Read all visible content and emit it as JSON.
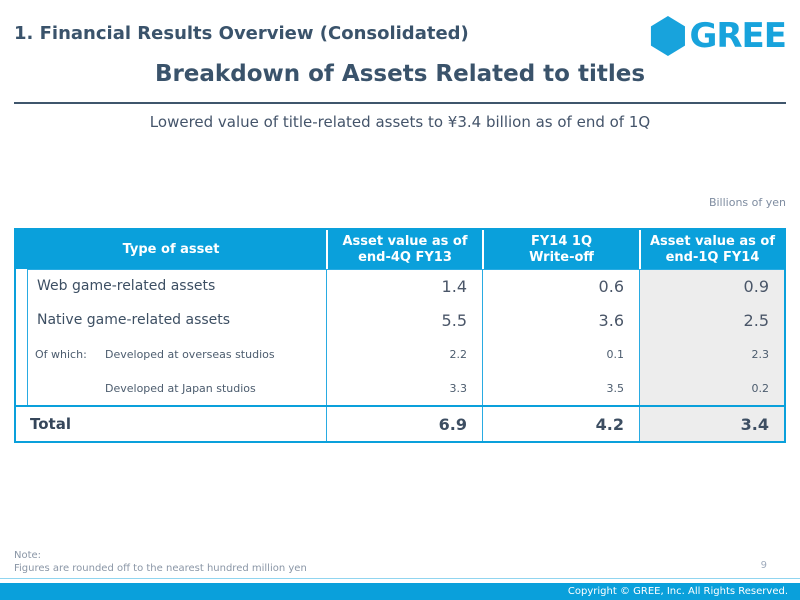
{
  "slide": {
    "section_title": "1. Financial Results Overview (Consolidated)",
    "title": "Breakdown of Assets Related to titles",
    "subtitle": "Lowered value of title-related assets to ¥3.4 billion as of end of 1Q",
    "unit_label": "Billions of yen",
    "page_number": "9"
  },
  "logo": {
    "brand": "GREE"
  },
  "table": {
    "columns": [
      {
        "line1": "Type of asset",
        "line2": ""
      },
      {
        "line1": "Asset value as of",
        "line2": "end-4Q FY13"
      },
      {
        "line1": "FY14 1Q",
        "line2": "Write-off"
      },
      {
        "line1": "Asset value as of",
        "line2": "end-1Q FY14"
      }
    ],
    "rows": [
      {
        "type": "main",
        "prefix": "",
        "label": "Web game-related assets",
        "values": [
          "1.4",
          "0.6",
          "0.9"
        ]
      },
      {
        "type": "main",
        "prefix": "",
        "label": "Native game-related assets",
        "values": [
          "5.5",
          "3.6",
          "2.5"
        ]
      },
      {
        "type": "sub",
        "prefix": "Of which:",
        "label": "Developed at overseas studios",
        "values": [
          "2.2",
          "0.1",
          "2.3"
        ]
      },
      {
        "type": "sub",
        "prefix": "",
        "label": "Developed at Japan studios",
        "values": [
          "3.3",
          "3.5",
          "0.2"
        ]
      }
    ],
    "total": {
      "label": "Total",
      "values": [
        "6.9",
        "4.2",
        "3.4"
      ]
    }
  },
  "footer": {
    "note_label": "Note:",
    "note_text": "Figures are rounded off to the nearest hundred million yen",
    "copyright": "Copyright © GREE, Inc. All Rights Reserved."
  },
  "colors": {
    "accent_cyan": "#0aa0db",
    "logo_cyan": "#18a3dc",
    "heading_navy": "#3a536b",
    "body_text": "#44546a",
    "last_column_bg": "#ededed",
    "muted_gray": "#8a96a6"
  }
}
